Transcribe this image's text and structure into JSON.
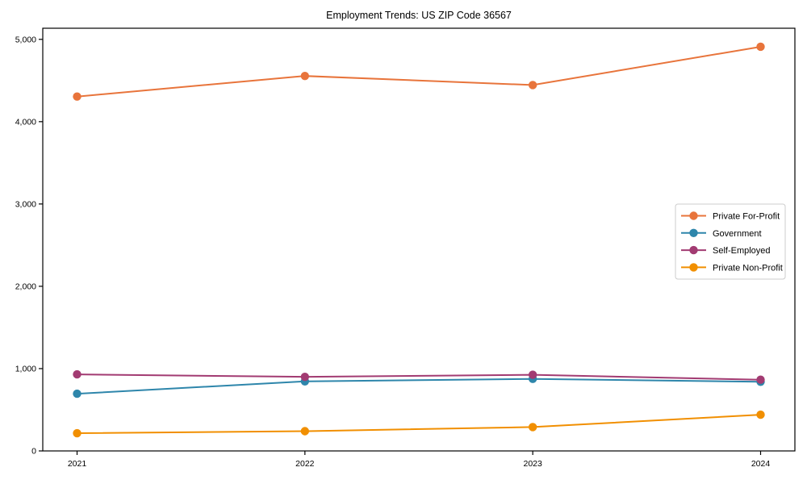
{
  "chart": {
    "title": "Employment Trends: US ZIP Code 36567"
  },
  "chart_data": {
    "type": "line",
    "title": "Employment Trends: US ZIP Code 36567",
    "xlabel": "",
    "ylabel": "",
    "categories": [
      "2021",
      "2022",
      "2023",
      "2024"
    ],
    "series": [
      {
        "name": "Private For-Profit",
        "color": "#E8743B",
        "values": [
          4305,
          4555,
          4445,
          4910
        ]
      },
      {
        "name": "Government",
        "color": "#2E86AB",
        "values": [
          695,
          845,
          875,
          840
        ]
      },
      {
        "name": "Self-Employed",
        "color": "#A23B72",
        "values": [
          930,
          900,
          925,
          865
        ]
      },
      {
        "name": "Private Non-Profit",
        "color": "#F18F01",
        "values": [
          215,
          240,
          290,
          440
        ]
      }
    ],
    "ylim": [
      0,
      5135
    ],
    "yticks": [
      0,
      1000,
      2000,
      3000,
      4000,
      5000
    ],
    "ytick_labels": [
      "0",
      "1,000",
      "2,000",
      "3,000",
      "4,000",
      "5,000"
    ],
    "grid": false,
    "legend_position": "center-right",
    "axis_color": "#000000",
    "legend_border_color": "#cccccc",
    "background_color": "#ffffff"
  }
}
